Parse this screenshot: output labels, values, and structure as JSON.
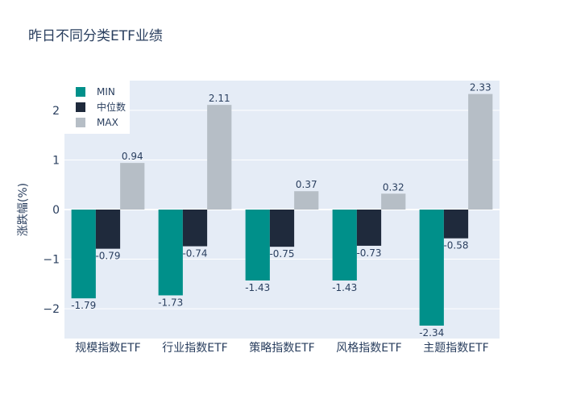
{
  "chart_data": {
    "type": "bar",
    "title": "昨日不同分类ETF业绩",
    "xlabel": "",
    "ylabel": "涨跌幅(%)",
    "categories": [
      "规模指数ETF",
      "行业指数ETF",
      "策略指数ETF",
      "风格指数ETF",
      "主题指数ETF"
    ],
    "series": [
      {
        "name": "MIN",
        "color": "#00908a",
        "values": [
          -1.79,
          -1.73,
          -1.43,
          -1.43,
          -2.34
        ]
      },
      {
        "name": "中位数",
        "color": "#1f2a3c",
        "values": [
          -0.79,
          -0.74,
          -0.75,
          -0.73,
          -0.58
        ]
      },
      {
        "name": "MAX",
        "color": "#b6bec6",
        "values": [
          0.94,
          2.11,
          0.37,
          0.32,
          2.33
        ]
      }
    ],
    "ylim": [
      -2.6,
      2.6
    ],
    "yticks": [
      -2,
      -1,
      0,
      1,
      2
    ],
    "ytick_labels": [
      "−2",
      "−1",
      "0",
      "1",
      "2"
    ],
    "grid": true,
    "legend_position": "top-left"
  }
}
